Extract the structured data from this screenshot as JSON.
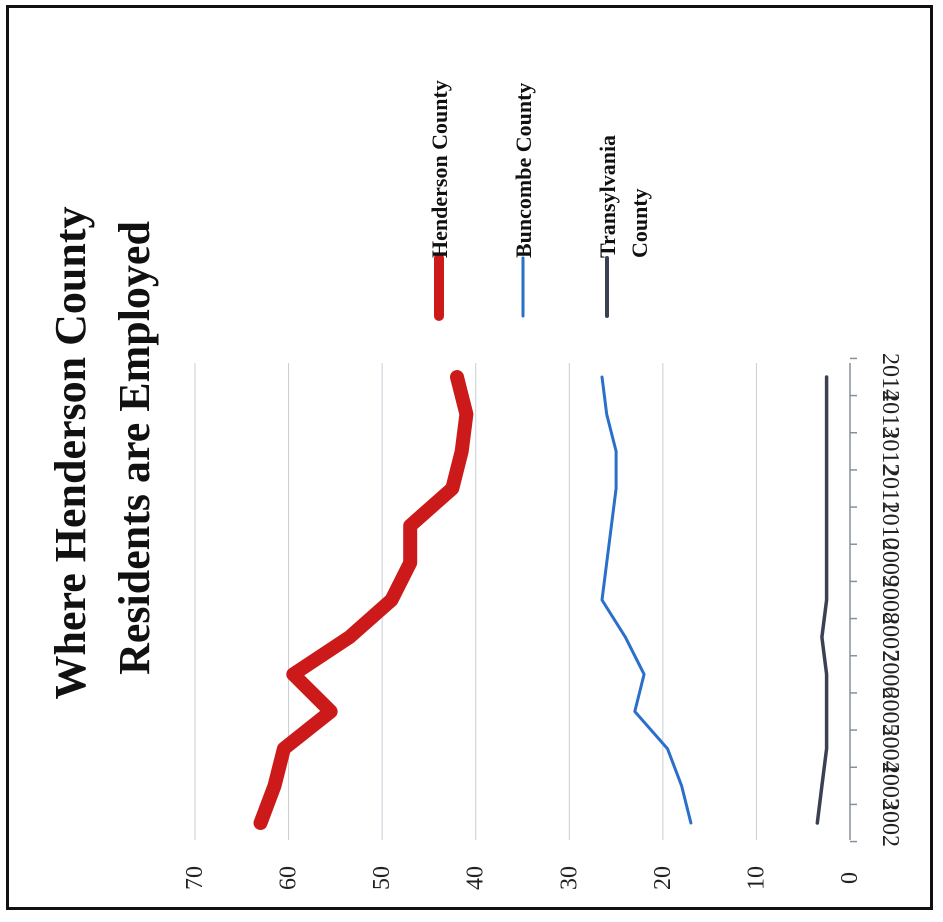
{
  "chart_data": {
    "type": "line",
    "orientation": "rotated 90° clockwise (x axis years along right edge, values increase leftward)",
    "title_lines": [
      "Where Henderson County",
      "Residents are Employed"
    ],
    "x": [
      "2002",
      "2003",
      "2004",
      "2005",
      "2006",
      "2007",
      "2008",
      "2009",
      "2010",
      "2011",
      "2012",
      "2013",
      "2014"
    ],
    "ylim": [
      0,
      70
    ],
    "yticks": [
      "0",
      "10",
      "20",
      "30",
      "40",
      "50",
      "60",
      "70"
    ],
    "grid": true,
    "legend_position": "top-right",
    "series": [
      {
        "name": "Henderson County",
        "name_lines": [
          "Henderson County"
        ],
        "color": "#cc1a1a",
        "values": [
          63,
          61.5,
          60.5,
          55.5,
          59.5,
          53.5,
          49,
          47,
          47,
          42.5,
          41.5,
          41,
          42
        ]
      },
      {
        "name": "Buncombe County",
        "name_lines": [
          "Buncombe County"
        ],
        "color": "#2a6fc9",
        "values": [
          17,
          18,
          19.5,
          23,
          22,
          24,
          26.5,
          26,
          25.5,
          25,
          25,
          26,
          26.5
        ]
      },
      {
        "name": "Transylvania County",
        "name_lines": [
          "Transylvania",
          "County"
        ],
        "color": "#3b4152",
        "values": [
          3.5,
          3,
          2.5,
          2.5,
          2.5,
          3,
          2.5,
          2.5,
          2.5,
          2.5,
          2.5,
          2.5,
          2.5
        ]
      }
    ]
  }
}
